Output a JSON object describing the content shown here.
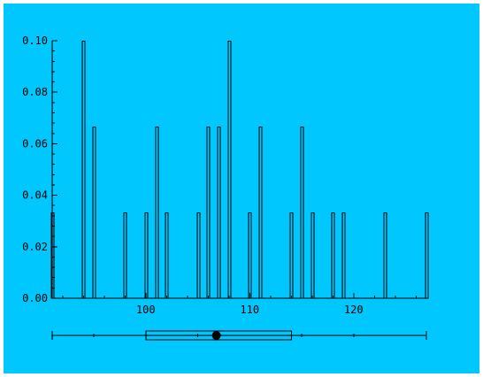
{
  "colors": {
    "background": "#00c8ff",
    "ink": "#000000"
  },
  "chart_data": {
    "type": "bar",
    "subtype": "histogram",
    "bar_fill": "none",
    "x": [
      91,
      94,
      95,
      98,
      100,
      101,
      102,
      105,
      106,
      107,
      108,
      110,
      111,
      114,
      115,
      116,
      118,
      119,
      123,
      127
    ],
    "values": [
      0.0333,
      0.1,
      0.0667,
      0.0333,
      0.0333,
      0.0667,
      0.0333,
      0.0333,
      0.0667,
      0.0667,
      0.1,
      0.0333,
      0.0667,
      0.0333,
      0.0667,
      0.0333,
      0.0333,
      0.0333,
      0.0333,
      0.0333
    ],
    "xlim": [
      91,
      127
    ],
    "ylim": [
      0,
      0.1
    ],
    "x_ticks": [
      100,
      110,
      120
    ],
    "x_tick_labels": [
      "100",
      "110",
      "120"
    ],
    "y_ticks": [
      0,
      0.02,
      0.04,
      0.06,
      0.08,
      0.1
    ],
    "y_tick_labels": [
      "0.00",
      "0.02",
      "0.04",
      "0.06",
      "0.08",
      "0.10"
    ],
    "title": "",
    "xlabel": "",
    "ylabel": "",
    "grid": false,
    "boxplot": {
      "whisker_low": 91,
      "q1": 100,
      "median": 106.8,
      "q3": 114,
      "whisker_high": 127,
      "mean": 106.8
    }
  }
}
